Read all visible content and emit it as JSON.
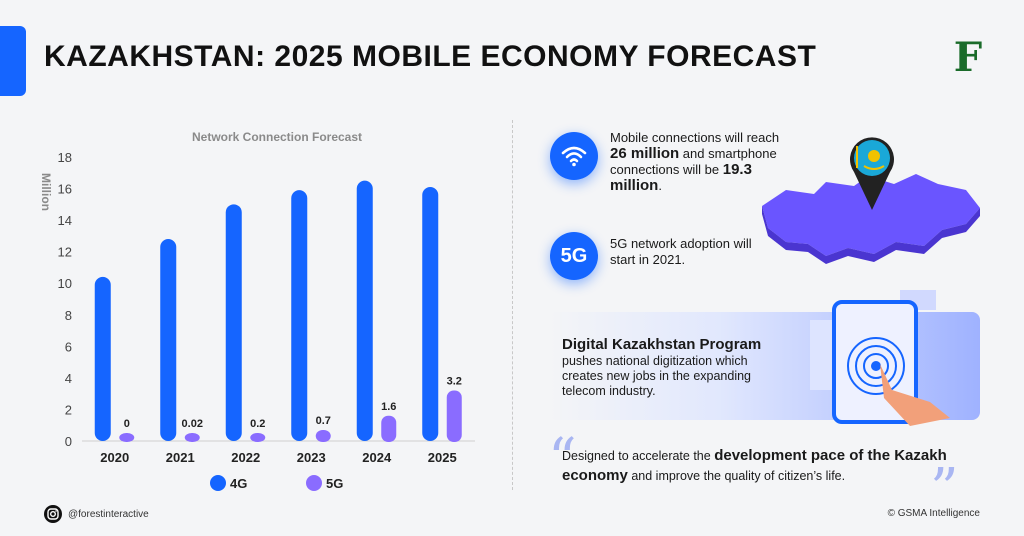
{
  "header": {
    "title": "KAZAKHSTAN: 2025 MOBILE ECONOMY FORECAST",
    "logo_letter": "F"
  },
  "chart_data": {
    "type": "bar",
    "title": "Network Connection Forecast",
    "ylabel": "Million",
    "xlabel": "",
    "ylim": [
      0,
      18
    ],
    "yticks": [
      0,
      2,
      4,
      6,
      8,
      10,
      12,
      14,
      16,
      18
    ],
    "categories": [
      "2020",
      "2021",
      "2022",
      "2023",
      "2024",
      "2025"
    ],
    "series": [
      {
        "name": "4G",
        "color": "#1565ff",
        "values": [
          10.4,
          12.8,
          15.0,
          15.9,
          16.5,
          16.1
        ]
      },
      {
        "name": "5G",
        "color": "#8a6cff",
        "values": [
          0,
          0.02,
          0.2,
          0.7,
          1.6,
          3.2
        ],
        "labels": [
          "0",
          "0.02",
          "0.2",
          "0.7",
          "1.6",
          "3.2"
        ]
      }
    ],
    "legend": "bottom"
  },
  "info": {
    "connections": {
      "pre": "Mobile connections will reach ",
      "b1": "26 million",
      "mid": " and smartphone connections will be ",
      "b2": "19.3 million",
      "post": ".",
      "icon": "wifi-icon"
    },
    "fiveg": {
      "icon_label": "5G",
      "text": "5G network adoption will start in 2021."
    }
  },
  "program": {
    "title": "Digital Kazakhstan Program",
    "text": "pushes national digitization which creates new jobs in the expanding telecom industry."
  },
  "quote": {
    "pre": "Designed to accelerate the ",
    "b1": "development pace of the Kazakh economy",
    "post": " and improve the quality of citizen’s life."
  },
  "footer": {
    "handle": "@forestinteractive",
    "source": "© GSMA Intelligence"
  },
  "colors": {
    "accent": "#1565ff",
    "fiveg": "#8a6cff",
    "map": "#6a55ff",
    "logo": "#1a6b2a"
  }
}
